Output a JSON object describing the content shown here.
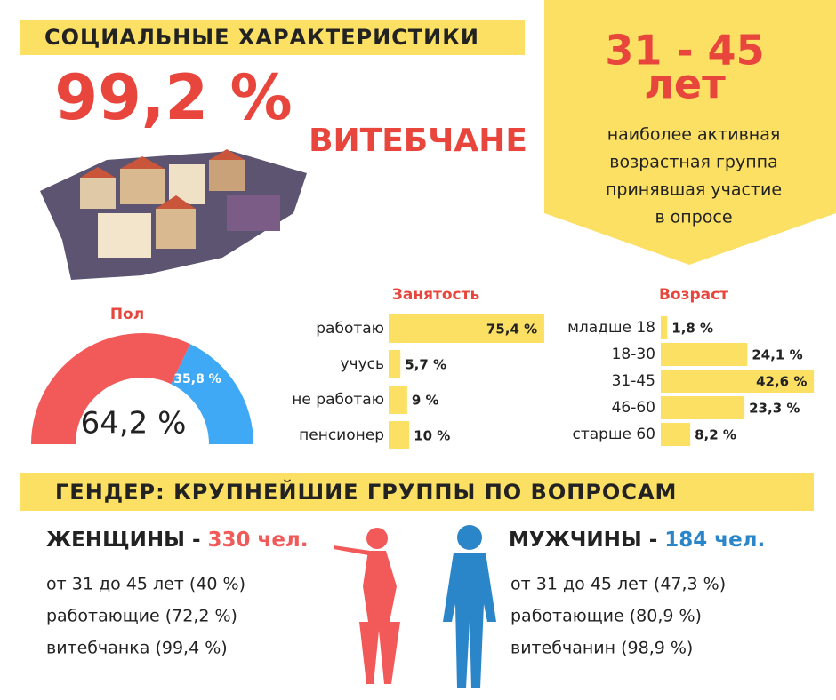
{
  "header": {
    "title": "СОЦИАЛЬНЫЕ ХАРАКТЕРИСТИКИ",
    "big_value": "99,2 %",
    "big_label": "ВИТЕБЧАНЕ"
  },
  "age_callout": {
    "value": "31 - 45",
    "unit": "лет",
    "lines": [
      "наиболее активная",
      "возрастная группа",
      "принявшая участие",
      "в опросе"
    ]
  },
  "chart_data": [
    {
      "type": "half-donut",
      "title": "Пол",
      "values": [
        64.2,
        35.8
      ],
      "value_labels": [
        "64,2 %",
        "35,8 %"
      ],
      "colors": [
        "#f25a5a",
        "#3fa9f5"
      ]
    },
    {
      "type": "hbar",
      "title": "Занятость",
      "categories": [
        "работаю",
        "учусь",
        "не работаю",
        "пенсионер"
      ],
      "values": [
        75.4,
        5.7,
        9,
        10
      ],
      "value_labels": [
        "75,4 %",
        "5,7 %",
        "9 %",
        "10 %"
      ],
      "color": "#fbe064"
    },
    {
      "type": "hbar",
      "title": "Возраст",
      "categories": [
        "младше 18",
        "18-30",
        "31-45",
        "46-60",
        "старше 60"
      ],
      "values": [
        1.8,
        24.1,
        42.6,
        23.3,
        8.2
      ],
      "value_labels": [
        "1,8 %",
        "24,1 %",
        "42,6 %",
        "23,3 %",
        "8,2 %"
      ],
      "color": "#fbe064"
    }
  ],
  "gender": {
    "title": "ГЕНДЕР: КРУПНЕЙШИЕ ГРУППЫ ПО ВОПРОСАМ",
    "women": {
      "label": "ЖЕНЩИНЫ -",
      "count": "330 чел.",
      "facts": [
        "от 31 до 45 лет (40 %)",
        "работающие (72,2 %)",
        "витебчанка (99,4 %)"
      ]
    },
    "men": {
      "label": "МУЖЧИНЫ -",
      "count": "184 чел.",
      "facts": [
        "от 31 до 45 лет (47,3 %)",
        "работающие (80,9 %)",
        "витебчанин (98,9 %)"
      ]
    }
  }
}
